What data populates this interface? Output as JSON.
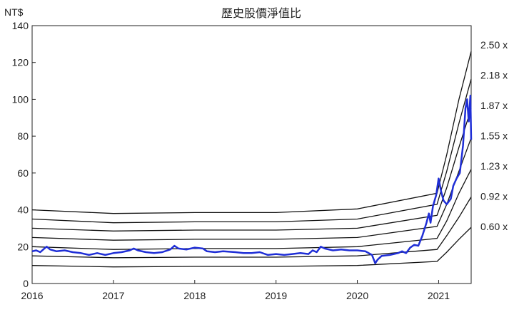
{
  "chart_data": {
    "type": "line",
    "title": "歷史股價淨值比",
    "ylabel": "NT$",
    "xlabel": "",
    "xlim": [
      2016.0,
      2021.4
    ],
    "ylim": [
      0,
      140
    ],
    "x_ticks": [
      "2016",
      "2017",
      "2018",
      "2019",
      "2020",
      "2021"
    ],
    "y_ticks": [
      "0",
      "20",
      "40",
      "60",
      "80",
      "100",
      "120",
      "140"
    ],
    "grid": false,
    "colors": {
      "price": "#1f2ed6",
      "bands": "#111111",
      "axis": "#222222"
    },
    "band_series": [
      {
        "name": "2.50 x",
        "values": [
          [
            2016.0,
            40.0
          ],
          [
            2017.0,
            38.0
          ],
          [
            2018.0,
            38.5
          ],
          [
            2019.0,
            38.5
          ],
          [
            2020.0,
            40.5
          ],
          [
            2020.98,
            49.0
          ],
          [
            2021.1,
            70.0
          ],
          [
            2021.25,
            100.0
          ],
          [
            2021.4,
            126.0
          ]
        ]
      },
      {
        "name": "2.18 x",
        "values": [
          [
            2016.0,
            35.0
          ],
          [
            2017.0,
            33.0
          ],
          [
            2018.0,
            33.5
          ],
          [
            2019.0,
            33.5
          ],
          [
            2020.0,
            35.0
          ],
          [
            2020.98,
            43.0
          ],
          [
            2021.1,
            61.0
          ],
          [
            2021.25,
            87.0
          ],
          [
            2021.4,
            111.0
          ]
        ]
      },
      {
        "name": "1.87 x",
        "values": [
          [
            2016.0,
            30.0
          ],
          [
            2017.0,
            28.5
          ],
          [
            2018.0,
            29.0
          ],
          [
            2019.0,
            29.0
          ],
          [
            2020.0,
            30.0
          ],
          [
            2020.98,
            37.0
          ],
          [
            2021.1,
            52.0
          ],
          [
            2021.25,
            74.0
          ],
          [
            2021.4,
            95.0
          ]
        ]
      },
      {
        "name": "1.55 x",
        "values": [
          [
            2016.0,
            25.0
          ],
          [
            2017.0,
            23.5
          ],
          [
            2018.0,
            24.0
          ],
          [
            2019.0,
            24.0
          ],
          [
            2020.0,
            25.0
          ],
          [
            2020.98,
            31.0
          ],
          [
            2021.1,
            43.0
          ],
          [
            2021.25,
            61.0
          ],
          [
            2021.4,
            79.0
          ]
        ]
      },
      {
        "name": "1.23 x",
        "values": [
          [
            2016.0,
            20.0
          ],
          [
            2017.0,
            18.5
          ],
          [
            2018.0,
            19.0
          ],
          [
            2019.0,
            19.0
          ],
          [
            2020.0,
            20.0
          ],
          [
            2020.98,
            24.5
          ],
          [
            2021.1,
            34.0
          ],
          [
            2021.25,
            49.0
          ],
          [
            2021.4,
            62.0
          ]
        ]
      },
      {
        "name": "0.92 x",
        "values": [
          [
            2016.0,
            15.0
          ],
          [
            2017.0,
            14.0
          ],
          [
            2018.0,
            14.3
          ],
          [
            2019.0,
            14.3
          ],
          [
            2020.0,
            15.0
          ],
          [
            2020.98,
            18.5
          ],
          [
            2021.1,
            26.0
          ],
          [
            2021.25,
            36.0
          ],
          [
            2021.4,
            47.0
          ]
        ]
      },
      {
        "name": "0.60 x",
        "values": [
          [
            2016.0,
            9.8
          ],
          [
            2017.0,
            9.0
          ],
          [
            2018.0,
            9.3
          ],
          [
            2019.0,
            9.3
          ],
          [
            2020.0,
            9.8
          ],
          [
            2020.98,
            12.0
          ],
          [
            2021.1,
            17.0
          ],
          [
            2021.25,
            24.0
          ],
          [
            2021.4,
            30.5
          ]
        ]
      }
    ],
    "price_series": {
      "name": "",
      "values": [
        [
          2016.0,
          17.5
        ],
        [
          2016.05,
          18.0
        ],
        [
          2016.1,
          17.0
        ],
        [
          2016.15,
          19.0
        ],
        [
          2016.18,
          20.0
        ],
        [
          2016.22,
          18.5
        ],
        [
          2016.3,
          17.5
        ],
        [
          2016.4,
          18.0
        ],
        [
          2016.5,
          17.0
        ],
        [
          2016.6,
          16.5
        ],
        [
          2016.7,
          15.5
        ],
        [
          2016.8,
          16.5
        ],
        [
          2016.9,
          15.5
        ],
        [
          2017.0,
          16.5
        ],
        [
          2017.1,
          17.0
        ],
        [
          2017.2,
          18.0
        ],
        [
          2017.25,
          19.0
        ],
        [
          2017.3,
          18.0
        ],
        [
          2017.4,
          17.0
        ],
        [
          2017.5,
          16.5
        ],
        [
          2017.6,
          17.0
        ],
        [
          2017.7,
          18.5
        ],
        [
          2017.75,
          20.5
        ],
        [
          2017.8,
          19.0
        ],
        [
          2017.9,
          18.5
        ],
        [
          2018.0,
          19.5
        ],
        [
          2018.1,
          19.0
        ],
        [
          2018.15,
          17.5
        ],
        [
          2018.25,
          17.0
        ],
        [
          2018.35,
          17.5
        ],
        [
          2018.5,
          17.0
        ],
        [
          2018.6,
          16.5
        ],
        [
          2018.7,
          16.5
        ],
        [
          2018.8,
          17.0
        ],
        [
          2018.9,
          15.5
        ],
        [
          2019.0,
          16.0
        ],
        [
          2019.1,
          15.5
        ],
        [
          2019.2,
          16.0
        ],
        [
          2019.3,
          16.5
        ],
        [
          2019.4,
          16.0
        ],
        [
          2019.45,
          18.0
        ],
        [
          2019.5,
          17.0
        ],
        [
          2019.55,
          20.0
        ],
        [
          2019.6,
          19.0
        ],
        [
          2019.7,
          18.0
        ],
        [
          2019.8,
          18.5
        ],
        [
          2019.9,
          18.0
        ],
        [
          2020.0,
          18.0
        ],
        [
          2020.1,
          17.5
        ],
        [
          2020.18,
          15.5
        ],
        [
          2020.22,
          11.0
        ],
        [
          2020.25,
          13.0
        ],
        [
          2020.3,
          15.0
        ],
        [
          2020.4,
          15.5
        ],
        [
          2020.5,
          16.5
        ],
        [
          2020.55,
          17.5
        ],
        [
          2020.6,
          16.5
        ],
        [
          2020.65,
          19.5
        ],
        [
          2020.7,
          21.0
        ],
        [
          2020.75,
          20.5
        ],
        [
          2020.8,
          26.0
        ],
        [
          2020.85,
          33.0
        ],
        [
          2020.88,
          38.0
        ],
        [
          2020.9,
          33.0
        ],
        [
          2020.93,
          42.0
        ],
        [
          2020.97,
          48.0
        ],
        [
          2021.0,
          57.0
        ],
        [
          2021.03,
          50.0
        ],
        [
          2021.06,
          45.0
        ],
        [
          2021.1,
          43.0
        ],
        [
          2021.15,
          46.0
        ],
        [
          2021.18,
          53.0
        ],
        [
          2021.22,
          57.0
        ],
        [
          2021.26,
          60.0
        ],
        [
          2021.3,
          75.0
        ],
        [
          2021.33,
          95.0
        ],
        [
          2021.35,
          100.0
        ],
        [
          2021.37,
          88.0
        ],
        [
          2021.39,
          102.0
        ],
        [
          2021.4,
          78.0
        ]
      ]
    }
  }
}
